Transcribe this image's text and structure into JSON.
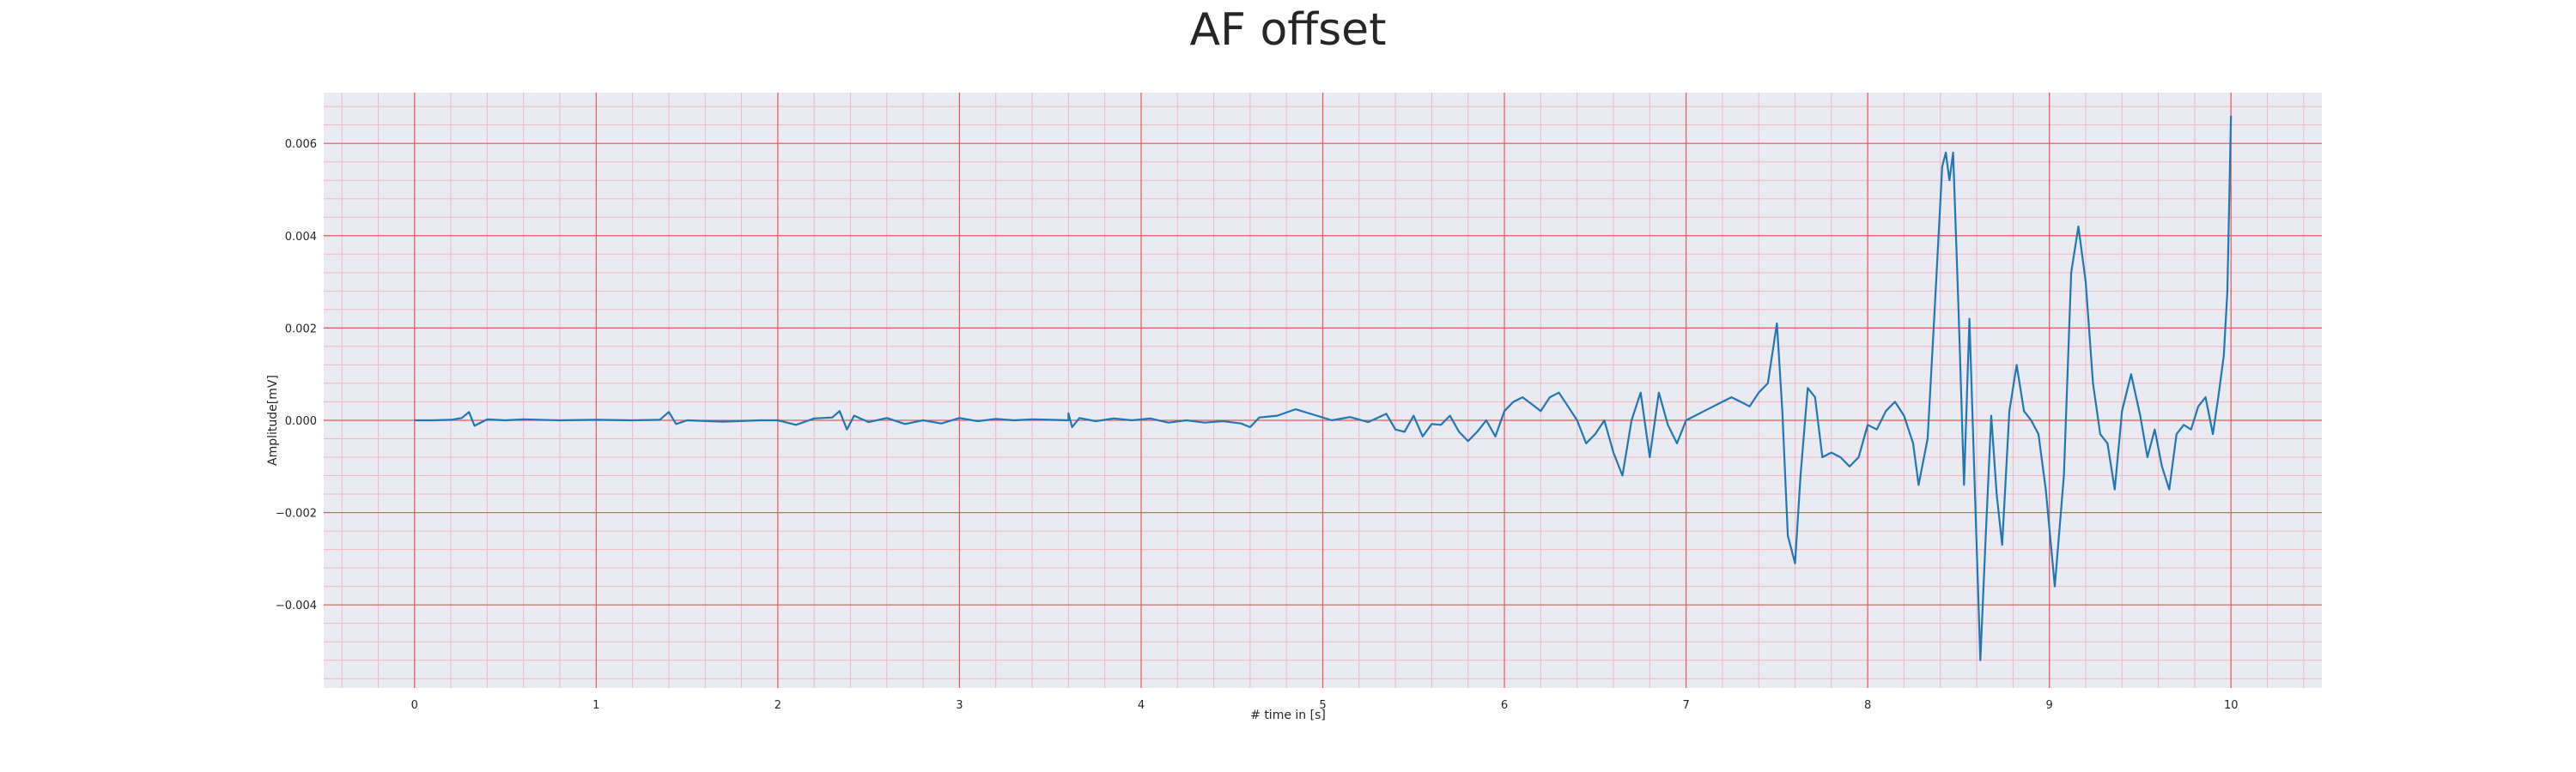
{
  "chart_data": {
    "type": "line",
    "title": "AF offset",
    "xlabel": "# time in [s]",
    "ylabel": "Amplitude[mV]",
    "xlim": [
      -0.5,
      10.5
    ],
    "ylim": [
      -0.0058,
      0.0071
    ],
    "x_ticks": [
      0,
      1,
      2,
      3,
      4,
      5,
      6,
      7,
      8,
      9,
      10
    ],
    "y_ticks": [
      -0.004,
      -0.002,
      0.0,
      0.002,
      0.004,
      0.006
    ],
    "y_tick_labels": [
      "−0.004",
      "−0.002",
      "0.000",
      "0.002",
      "0.004",
      "0.006"
    ],
    "grid": true,
    "minor_grid": true,
    "colors": {
      "plot_background": "#eaeaf2",
      "major_grid": "#e8585a",
      "minor_grid": "#f2b8c0",
      "line": "#1f77b4"
    },
    "series": [
      {
        "x": [
          0.0,
          0.1,
          0.2,
          0.26,
          0.3,
          0.33,
          0.4,
          0.5,
          0.6,
          0.8,
          1.0,
          1.2,
          1.35,
          1.4,
          1.44,
          1.5,
          1.7,
          1.9,
          2.0,
          2.1,
          2.2,
          2.3,
          2.34,
          2.38,
          2.42,
          2.5,
          2.6,
          2.7,
          2.8,
          2.9,
          3.0,
          3.1,
          3.2,
          3.3,
          3.4,
          3.5,
          3.6,
          3.6,
          3.62,
          3.66,
          3.75,
          3.85,
          3.95,
          4.05,
          4.15,
          4.25,
          4.35,
          4.45,
          4.55,
          4.6,
          4.65,
          4.75,
          4.85,
          4.95,
          5.05,
          5.15,
          5.25,
          5.35,
          5.4,
          5.45,
          5.5,
          5.55,
          5.6,
          5.65,
          5.7,
          5.75,
          5.8,
          5.85,
          5.9,
          5.95,
          6.0,
          6.05,
          6.1,
          6.15,
          6.2,
          6.25,
          6.3,
          6.35,
          6.4,
          6.45,
          6.5,
          6.55,
          6.6,
          6.65,
          6.7,
          6.75,
          6.8,
          6.85,
          6.9,
          6.95,
          7.0,
          7.05,
          7.1,
          7.15,
          7.2,
          7.25,
          7.3,
          7.35,
          7.4,
          7.45,
          7.5,
          7.53,
          7.56,
          7.6,
          7.63,
          7.67,
          7.71,
          7.75,
          7.8,
          7.85,
          7.9,
          7.95,
          8.0,
          8.05,
          8.1,
          8.15,
          8.2,
          8.25,
          8.28,
          8.33,
          8.37,
          8.41,
          8.43,
          8.45,
          8.47,
          8.5,
          8.53,
          8.56,
          8.59,
          8.62,
          8.65,
          8.68,
          8.71,
          8.74,
          8.78,
          8.82,
          8.86,
          8.9,
          8.94,
          8.98,
          9.03,
          9.08,
          9.12,
          9.16,
          9.2,
          9.24,
          9.28,
          9.32,
          9.36,
          9.4,
          9.45,
          9.5,
          9.54,
          9.58,
          9.62,
          9.66,
          9.7,
          9.74,
          9.78,
          9.82,
          9.86,
          9.9,
          9.93,
          9.96,
          9.98,
          10.0
        ],
        "y": [
          0.0,
          0.0,
          1e-05,
          5e-05,
          0.00018,
          -0.00012,
          2e-05,
          0.0,
          2e-05,
          0.0,
          1e-05,
          0.0,
          1e-05,
          0.00018,
          -8e-05,
          0.0,
          -3e-05,
          0.0,
          0.0,
          -0.0001,
          4e-05,
          6e-05,
          0.0002,
          -0.0002,
          0.0001,
          -4e-05,
          5e-05,
          -8e-05,
          0.0,
          -7e-05,
          5e-05,
          -2e-05,
          3e-05,
          0.0,
          2e-05,
          1e-05,
          0.0,
          0.00015,
          -0.00015,
          5e-05,
          -2e-05,
          4e-05,
          0.0,
          4e-05,
          -5e-05,
          0.0,
          -5e-05,
          -2e-05,
          -7e-05,
          -0.00015,
          6e-05,
          0.0001,
          0.00024,
          0.00012,
          0.0,
          7e-05,
          -4e-05,
          0.00014,
          -0.0002,
          -0.00025,
          0.0001,
          -0.00035,
          -8e-05,
          -0.0001,
          0.0001,
          -0.00025,
          -0.00045,
          -0.00025,
          0.0,
          -0.00035,
          0.0002,
          0.0004,
          0.0005,
          0.00035,
          0.0002,
          0.0005,
          0.0006,
          0.0003,
          0.0,
          -0.0005,
          -0.0003,
          0.0,
          -0.0007,
          -0.0012,
          0.0,
          0.0006,
          -0.0008,
          0.0006,
          -0.0001,
          -0.0005,
          0.0,
          0.0001,
          0.0002,
          0.0003,
          0.0004,
          0.0005,
          0.0004,
          0.0003,
          0.0006,
          0.0008,
          0.0021,
          0.0002,
          -0.0025,
          -0.0031,
          -0.0012,
          0.0007,
          0.0005,
          -0.0008,
          -0.0007,
          -0.0008,
          -0.001,
          -0.0008,
          -0.0001,
          -0.0002,
          0.0002,
          0.0004,
          0.0001,
          -0.0005,
          -0.0014,
          -0.0004,
          0.0025,
          0.0055,
          0.0058,
          0.0052,
          0.0058,
          0.0024,
          -0.0014,
          0.0022,
          -0.0015,
          -0.0052,
          -0.0025,
          0.0001,
          -0.0016,
          -0.0027,
          0.0002,
          0.0012,
          0.0002,
          0.0,
          -0.0003,
          -0.0015,
          -0.0036,
          -0.0012,
          0.0032,
          0.0042,
          0.003,
          0.0008,
          -0.0003,
          -0.0005,
          -0.0015,
          0.0002,
          0.001,
          0.0001,
          -0.0008,
          -0.0002,
          -0.001,
          -0.0015,
          -0.0003,
          -0.0001,
          -0.0002,
          0.0003,
          0.0005,
          -0.0003,
          0.0005,
          0.0014,
          0.0028,
          0.0066
        ]
      }
    ]
  }
}
